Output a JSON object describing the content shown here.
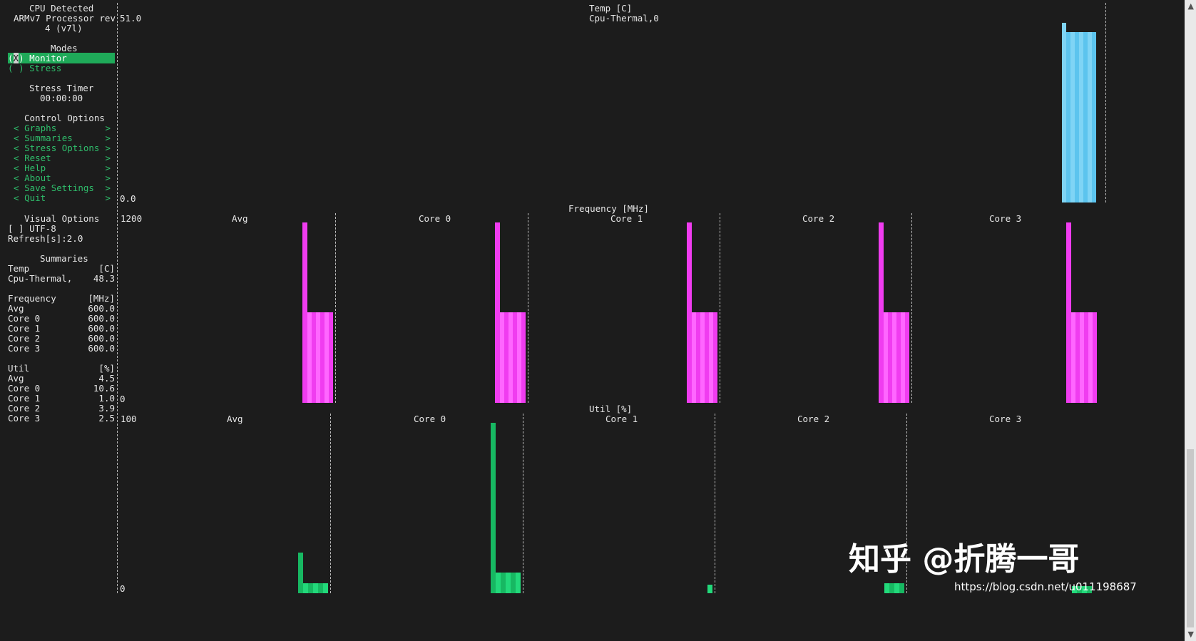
{
  "sidebar": {
    "cpu_detected_title": "CPU Detected",
    "cpu_model_line1": "ARMv7 Processor rev",
    "cpu_model_line2": "4 (v7l)",
    "modes_title": "Modes",
    "mode_monitor": {
      "marker": "X",
      "label": "Monitor",
      "selected": true
    },
    "mode_stress": {
      "marker": " ",
      "label": "Stress",
      "selected": false
    },
    "stress_timer_title": "Stress Timer",
    "stress_timer_value": "00:00:00",
    "control_options_title": "Control Options",
    "control_options": [
      "Graphs",
      "Summaries",
      "Stress Options",
      "Reset",
      "Help",
      "About",
      "Save Settings",
      "Quit"
    ],
    "visual_options_title": "Visual Options",
    "utf8_option": "[ ] UTF-8",
    "refresh": "Refresh[s]:2.0",
    "summaries_title": "Summaries",
    "temp_header": {
      "label": "Temp",
      "unit": "[C]"
    },
    "temp_rows": [
      {
        "label": "Cpu-Thermal,",
        "value": "48.3"
      }
    ],
    "freq_header": {
      "label": "Frequency",
      "unit": "[MHz]"
    },
    "freq_rows": [
      {
        "label": "Avg",
        "value": "600.0"
      },
      {
        "label": "Core 0",
        "value": "600.0"
      },
      {
        "label": "Core 1",
        "value": "600.0"
      },
      {
        "label": "Core 2",
        "value": "600.0"
      },
      {
        "label": "Core 3",
        "value": "600.0"
      }
    ],
    "util_header": {
      "label": "Util",
      "unit": "[%]"
    },
    "util_rows": [
      {
        "label": "Avg",
        "value": "4.5"
      },
      {
        "label": "Core 0",
        "value": "10.6"
      },
      {
        "label": "Core 1",
        "value": "1.0"
      },
      {
        "label": "Core 2",
        "value": "3.9"
      },
      {
        "label": "Core 3",
        "value": "2.5"
      }
    ]
  },
  "temp_graph": {
    "title": "Temp [C]",
    "series": "Cpu-Thermal,0",
    "y_max_label": "51.0",
    "y_min_label": "0.0",
    "bars": [
      51.0,
      48.3,
      48.3,
      48.3,
      48.3,
      48.3,
      48.3,
      48.3
    ]
  },
  "freq_graph": {
    "title": "Frequency [MHz]",
    "y_max_label": "1200",
    "y_min_label": "0",
    "y_max": 1200,
    "panels": [
      {
        "name": "Avg",
        "spike": 1200,
        "values": [
          600,
          600,
          600,
          600,
          600,
          600
        ]
      },
      {
        "name": "Core 0",
        "spike": 1200,
        "values": [
          600,
          600,
          600,
          600,
          600,
          600
        ]
      },
      {
        "name": "Core 1",
        "spike": 1200,
        "values": [
          600,
          600,
          600,
          600,
          600,
          600
        ]
      },
      {
        "name": "Core 2",
        "spike": 1200,
        "values": [
          600,
          600,
          600,
          600,
          600,
          600
        ]
      },
      {
        "name": "Core 3",
        "spike": 1200,
        "values": [
          600,
          600,
          600,
          600,
          600,
          600
        ]
      }
    ]
  },
  "util_graph": {
    "title": "Util [%]",
    "y_max_label": "100",
    "y_min_label": "0",
    "y_max": 100,
    "panels": [
      {
        "name": "Avg",
        "spike": 24,
        "values": [
          6,
          6,
          6,
          6,
          6
        ]
      },
      {
        "name": "Core 0",
        "spike": 100,
        "values": [
          12,
          12,
          12,
          12,
          12
        ]
      },
      {
        "name": "Core 1",
        "spike": 0,
        "values": [
          5
        ]
      },
      {
        "name": "Core 2",
        "spike": 0,
        "values": [
          6,
          6,
          6,
          6
        ]
      },
      {
        "name": "Core 3",
        "spike": 0,
        "values": [
          4,
          4,
          4,
          4
        ]
      }
    ]
  },
  "watermark": {
    "title": "知乎 @折腾一哥",
    "url": "https://blog.csdn.net/u011198687"
  },
  "colors": {
    "temp_bar": "#7fd4f5",
    "temp_bar_alt": "#5cc4ee",
    "freq_bar": "#ff66ff",
    "freq_bar_alt": "#f03cf0",
    "util_bar": "#22d97a",
    "util_bar_alt": "#17b862"
  }
}
